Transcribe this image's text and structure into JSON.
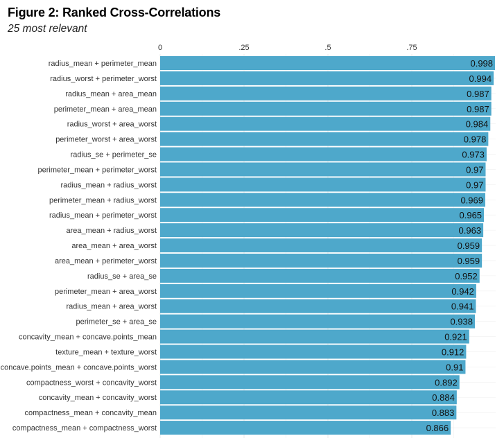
{
  "chart_data": {
    "type": "bar",
    "orientation": "horizontal",
    "title": "Figure 2: Ranked Cross-Correlations",
    "subtitle": "25 most relevant",
    "xlabel": "",
    "ylabel": "",
    "xlim": [
      0,
      1
    ],
    "x_ticks": [
      0,
      0.25,
      0.5,
      0.75
    ],
    "x_tick_labels": [
      "0",
      ".25",
      ".5",
      ".75"
    ],
    "x_axis_position": "top",
    "grid": true,
    "bar_color": "#4ea8cb",
    "categories": [
      "radius_mean + perimeter_mean",
      "radius_worst + perimeter_worst",
      "radius_mean + area_mean",
      "perimeter_mean + area_mean",
      "radius_worst + area_worst",
      "perimeter_worst + area_worst",
      "radius_se + perimeter_se",
      "perimeter_mean + perimeter_worst",
      "radius_mean + radius_worst",
      "perimeter_mean + radius_worst",
      "radius_mean + perimeter_worst",
      "area_mean + radius_worst",
      "area_mean + area_worst",
      "area_mean + perimeter_worst",
      "radius_se + area_se",
      "perimeter_mean + area_worst",
      "radius_mean + area_worst",
      "perimeter_se + area_se",
      "concavity_mean + concave.points_mean",
      "texture_mean + texture_worst",
      "concave.points_mean + concave.points_worst",
      "compactness_worst + concavity_worst",
      "concavity_mean + concavity_worst",
      "compactness_mean + concavity_mean",
      "compactness_mean + compactness_worst"
    ],
    "values": [
      0.998,
      0.994,
      0.987,
      0.987,
      0.984,
      0.978,
      0.973,
      0.97,
      0.97,
      0.969,
      0.965,
      0.963,
      0.959,
      0.959,
      0.952,
      0.942,
      0.941,
      0.938,
      0.921,
      0.912,
      0.91,
      0.892,
      0.884,
      0.883,
      0.866
    ],
    "value_labels": [
      "0.998",
      "0.994",
      "0.987",
      "0.987",
      "0.984",
      "0.978",
      "0.973",
      "0.97",
      "0.97",
      "0.969",
      "0.965",
      "0.963",
      "0.959",
      "0.959",
      "0.952",
      "0.942",
      "0.941",
      "0.938",
      "0.921",
      "0.912",
      "0.91",
      "0.892",
      "0.884",
      "0.883",
      "0.866"
    ]
  }
}
